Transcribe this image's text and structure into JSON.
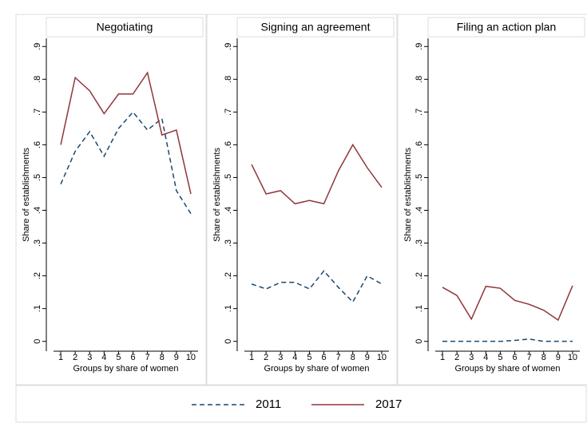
{
  "chart_data": [
    {
      "type": "line",
      "title": "Negotiating",
      "xlabel": "Groups by share of women",
      "ylabel": "Share of establishments",
      "x": [
        1,
        2,
        3,
        4,
        5,
        6,
        7,
        8,
        9,
        10
      ],
      "xlim": [
        0.5,
        10.5
      ],
      "xticks": [
        1,
        2,
        3,
        4,
        5,
        6,
        7,
        8,
        9,
        10
      ],
      "ylim": [
        -0.03,
        0.925
      ],
      "yticks": [
        0,
        {
          "value": 0.1,
          "label": ".1"
        },
        {
          "value": 0.2,
          "label": ".2"
        },
        {
          "value": 0.3,
          "label": ".3"
        },
        {
          "value": 0.4,
          "label": ".4"
        },
        {
          "value": 0.5,
          "label": ".5"
        },
        {
          "value": 0.6,
          "label": ".6"
        },
        {
          "value": 0.7,
          "label": ".7"
        },
        {
          "value": 0.8,
          "label": ".8"
        },
        {
          "value": 0.9,
          "label": ".9"
        }
      ],
      "series": [
        {
          "name": "2011",
          "color": "#1a476f",
          "linestyle": "dashed",
          "values": [
            0.48,
            0.58,
            0.64,
            0.565,
            0.65,
            0.7,
            0.645,
            0.68,
            0.46,
            0.39
          ]
        },
        {
          "name": "2017",
          "color": "#90353b",
          "linestyle": "solid",
          "values": [
            0.6,
            0.805,
            0.765,
            0.695,
            0.755,
            0.755,
            0.82,
            0.63,
            0.645,
            0.45
          ]
        }
      ]
    },
    {
      "type": "line",
      "title": "Signing an agreement",
      "xlabel": "Groups by share of women",
      "ylabel": "Share of establishments",
      "x": [
        1,
        2,
        3,
        4,
        5,
        6,
        7,
        8,
        9,
        10
      ],
      "xlim": [
        0.5,
        10.5
      ],
      "xticks": [
        1,
        2,
        3,
        4,
        5,
        6,
        7,
        8,
        9,
        10
      ],
      "ylim": [
        -0.03,
        0.925
      ],
      "yticks": [
        0,
        {
          "value": 0.1,
          "label": ".1"
        },
        {
          "value": 0.2,
          "label": ".2"
        },
        {
          "value": 0.3,
          "label": ".3"
        },
        {
          "value": 0.4,
          "label": ".4"
        },
        {
          "value": 0.5,
          "label": ".5"
        },
        {
          "value": 0.6,
          "label": ".6"
        },
        {
          "value": 0.7,
          "label": ".7"
        },
        {
          "value": 0.8,
          "label": ".8"
        },
        {
          "value": 0.9,
          "label": ".9"
        }
      ],
      "series": [
        {
          "color": "#1a476f",
          "linestyle": "dashed",
          "values": [
            0.175,
            0.16,
            0.18,
            0.18,
            0.16,
            0.215,
            0.165,
            0.12,
            0.2,
            0.175
          ]
        },
        {
          "color": "#90353b",
          "linestyle": "solid",
          "values": [
            0.54,
            0.45,
            0.46,
            0.42,
            0.43,
            0.42,
            0.52,
            0.6,
            0.53,
            0.47
          ]
        }
      ]
    },
    {
      "type": "line",
      "title": "Filing an action plan",
      "xlabel": "Groups by share of women",
      "ylabel": "Share of establishments",
      "x": [
        1,
        2,
        3,
        4,
        5,
        6,
        7,
        8,
        9,
        10
      ],
      "xlim": [
        0.5,
        10.5
      ],
      "xticks": [
        1,
        2,
        3,
        4,
        5,
        6,
        7,
        8,
        9,
        10
      ],
      "ylim": [
        -0.03,
        0.925
      ],
      "yticks": [
        0,
        {
          "value": 0.1,
          "label": ".1"
        },
        {
          "value": 0.2,
          "label": ".2"
        },
        {
          "value": 0.3,
          "label": ".3"
        },
        {
          "value": 0.4,
          "label": ".4"
        },
        {
          "value": 0.5,
          "label": ".5"
        },
        {
          "value": 0.6,
          "label": ".6"
        },
        {
          "value": 0.7,
          "label": ".7"
        },
        {
          "value": 0.8,
          "label": ".8"
        },
        {
          "value": 0.9,
          "label": ".9"
        }
      ],
      "series": [
        {
          "color": "#1a476f",
          "linestyle": "dashed",
          "values": [
            0,
            0,
            0,
            0,
            0,
            0.003,
            0.007,
            0,
            0,
            0
          ]
        },
        {
          "color": "#90353b",
          "linestyle": "solid",
          "values": [
            0.165,
            0.14,
            0.068,
            0.168,
            0.162,
            0.125,
            0.113,
            0.095,
            0.065,
            0.17
          ]
        }
      ]
    }
  ]
}
